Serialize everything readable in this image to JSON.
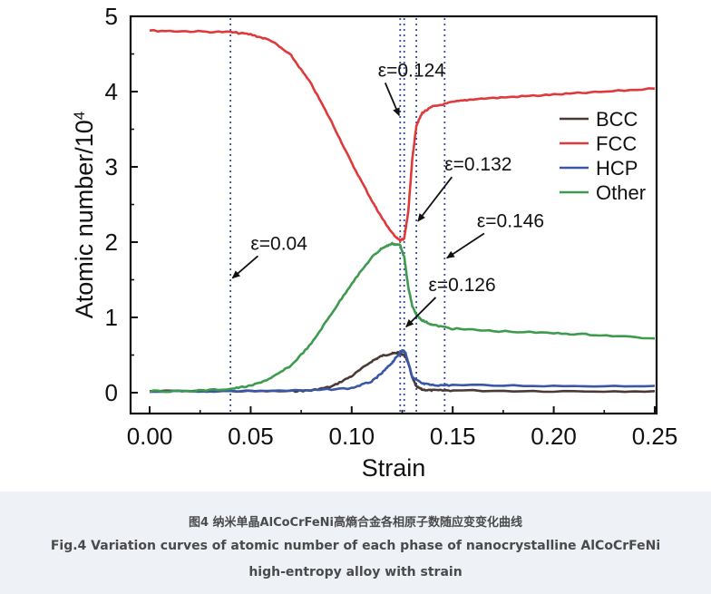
{
  "chart_data": {
    "type": "line",
    "xlabel": "Strain",
    "ylabel_main": "Atomic number/10",
    "ylabel_exp": "4",
    "xlim": [
      0,
      0.25
    ],
    "ylim": [
      0,
      5
    ],
    "xticks": [
      "0.00",
      "0.05",
      "0.10",
      "0.15",
      "0.20",
      "0.25"
    ],
    "yticks": [
      "0",
      "1",
      "2",
      "3",
      "4",
      "5"
    ],
    "legend_position": "right",
    "series": [
      {
        "name": "BCC",
        "color": "#4a3a36",
        "x": [
          0,
          0.04,
          0.07,
          0.08,
          0.09,
          0.1,
          0.11,
          0.115,
          0.12,
          0.123,
          0.126,
          0.128,
          0.13,
          0.132,
          0.135,
          0.14,
          0.15,
          0.2,
          0.25
        ],
        "y": [
          0.02,
          0.02,
          0.02,
          0.03,
          0.08,
          0.22,
          0.42,
          0.49,
          0.52,
          0.53,
          0.5,
          0.4,
          0.2,
          0.08,
          0.04,
          0.03,
          0.03,
          0.02,
          0.02
        ]
      },
      {
        "name": "FCC",
        "color": "#e0393b",
        "x": [
          0,
          0.02,
          0.04,
          0.05,
          0.06,
          0.07,
          0.08,
          0.09,
          0.1,
          0.11,
          0.115,
          0.12,
          0.124,
          0.126,
          0.128,
          0.13,
          0.132,
          0.135,
          0.14,
          0.15,
          0.16,
          0.18,
          0.2,
          0.22,
          0.25
        ],
        "y": [
          4.81,
          4.8,
          4.79,
          4.76,
          4.68,
          4.48,
          4.1,
          3.6,
          3.05,
          2.55,
          2.32,
          2.12,
          2.02,
          2.05,
          2.4,
          3.1,
          3.55,
          3.72,
          3.8,
          3.86,
          3.9,
          3.93,
          3.96,
          3.99,
          4.04
        ]
      },
      {
        "name": "HCP",
        "color": "#3a56a8",
        "x": [
          0,
          0.04,
          0.08,
          0.1,
          0.11,
          0.115,
          0.12,
          0.123,
          0.125,
          0.1265,
          0.128,
          0.13,
          0.135,
          0.14,
          0.15,
          0.2,
          0.25
        ],
        "y": [
          0.02,
          0.02,
          0.03,
          0.06,
          0.15,
          0.26,
          0.4,
          0.5,
          0.56,
          0.54,
          0.4,
          0.2,
          0.12,
          0.1,
          0.1,
          0.09,
          0.09
        ]
      },
      {
        "name": "Other",
        "color": "#3d9a4e",
        "x": [
          0,
          0.02,
          0.04,
          0.05,
          0.06,
          0.07,
          0.08,
          0.09,
          0.1,
          0.11,
          0.115,
          0.12,
          0.124,
          0.126,
          0.128,
          0.13,
          0.132,
          0.135,
          0.14,
          0.15,
          0.17,
          0.2,
          0.22,
          0.25
        ],
        "y": [
          0.02,
          0.02,
          0.05,
          0.09,
          0.19,
          0.36,
          0.65,
          1.05,
          1.45,
          1.8,
          1.92,
          1.98,
          1.96,
          1.8,
          1.4,
          1.15,
          1.03,
          0.96,
          0.9,
          0.85,
          0.82,
          0.79,
          0.77,
          0.72
        ]
      }
    ],
    "vlines": [
      0.04,
      0.124,
      0.126,
      0.132,
      0.146
    ],
    "annotations": [
      {
        "text": "ε=0.04",
        "x": 0.04,
        "y": 1.5,
        "tx": 0.05,
        "ty": 1.9
      },
      {
        "text": "ε=0.124",
        "x": 0.124,
        "y": 3.65,
        "tx": 0.113,
        "ty": 4.2
      },
      {
        "text": "ε=0.132",
        "x": 0.132,
        "y": 2.25,
        "tx": 0.146,
        "ty": 2.95
      },
      {
        "text": "ε=0.146",
        "x": 0.146,
        "y": 1.77,
        "tx": 0.162,
        "ty": 2.2
      },
      {
        "text": "ε=0.126",
        "x": 0.126,
        "y": 0.85,
        "tx": 0.138,
        "ty": 1.35
      }
    ]
  },
  "caption": {
    "cn": "图4 纳米单晶AlCoCrFeNi高熵合金各相原子数随应变变化曲线",
    "en_line1": "Fig.4 Variation curves of atomic number of each phase of nanocrystalline AlCoCrFeNi",
    "en_line2": "high-entropy alloy with strain"
  }
}
